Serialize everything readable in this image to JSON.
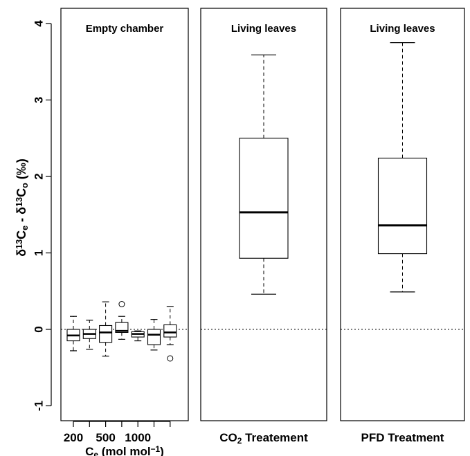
{
  "chart_data": {
    "type": "boxplot",
    "ylabel": {
      "parts": [
        {
          "t": "δ"
        },
        {
          "t": "13",
          "sup": true
        },
        {
          "t": "C"
        },
        {
          "t": "e",
          "sub": true
        },
        {
          "t": " - δ"
        },
        {
          "t": "13",
          "sup": true
        },
        {
          "t": "C"
        },
        {
          "t": "o",
          "sub": true
        },
        {
          "t": " (‰)"
        }
      ]
    },
    "ylim": [
      -1.25,
      4.25
    ],
    "yticks": [
      -1,
      0,
      1,
      2,
      3,
      4
    ],
    "ytick_labels": [
      "-1",
      "0",
      "1",
      "2",
      "3",
      "4"
    ],
    "reference_line": 0,
    "panels": [
      {
        "title": "Empty chamber",
        "xlabel": {
          "parts": [
            {
              "t": "C"
            },
            {
              "t": "e",
              "sub": true
            },
            {
              "t": " (mol mol"
            },
            {
              "t": "−1",
              "sup": true
            },
            {
              "t": ")"
            }
          ]
        },
        "xtick_labels": [
          "200",
          "500",
          "1000"
        ],
        "boxes": [
          {
            "whisker_low": -0.28,
            "q1": -0.15,
            "median": -0.08,
            "q3": 0.0,
            "whisker_high": 0.17,
            "outliers": []
          },
          {
            "whisker_low": -0.26,
            "q1": -0.12,
            "median": -0.06,
            "q3": 0.0,
            "whisker_high": 0.12,
            "outliers": []
          },
          {
            "whisker_low": -0.35,
            "q1": -0.17,
            "median": -0.04,
            "q3": 0.05,
            "whisker_high": 0.36,
            "outliers": []
          },
          {
            "whisker_low": -0.13,
            "q1": -0.04,
            "median": -0.02,
            "q3": 0.09,
            "whisker_high": 0.17,
            "outliers": [
              0.33
            ]
          },
          {
            "whisker_low": -0.15,
            "q1": -0.1,
            "median": -0.06,
            "q3": -0.03,
            "whisker_high": -0.02,
            "outliers": []
          },
          {
            "whisker_low": -0.27,
            "q1": -0.2,
            "median": -0.07,
            "q3": 0.0,
            "whisker_high": 0.13,
            "outliers": []
          },
          {
            "whisker_low": -0.2,
            "q1": -0.1,
            "median": -0.04,
            "q3": 0.06,
            "whisker_high": 0.3,
            "outliers": [
              -0.38
            ]
          }
        ]
      },
      {
        "title": "Living leaves",
        "xlabel": {
          "parts": [
            {
              "t": "CO"
            },
            {
              "t": "2",
              "sub": true
            },
            {
              "t": " Treatement"
            }
          ]
        },
        "xtick_labels": [],
        "boxes": [
          {
            "whisker_low": 0.46,
            "q1": 0.93,
            "median": 1.53,
            "q3": 2.5,
            "whisker_high": 3.59,
            "outliers": []
          }
        ]
      },
      {
        "title": "Living leaves",
        "xlabel": {
          "parts": [
            {
              "t": "PFD Treatment"
            }
          ]
        },
        "xtick_labels": [],
        "boxes": [
          {
            "whisker_low": 0.49,
            "q1": 0.99,
            "median": 1.36,
            "q3": 2.24,
            "whisker_high": 3.75,
            "outliers": []
          }
        ]
      }
    ]
  }
}
